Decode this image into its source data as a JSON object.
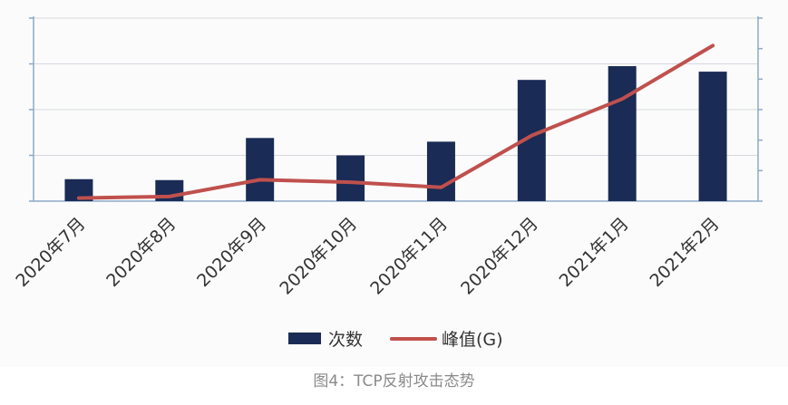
{
  "caption": "图4：TCP反射攻击态势",
  "chart_data": {
    "type": "bar+line",
    "categories": [
      "2020年7月",
      "2020年8月",
      "2020年9月",
      "2020年10月",
      "2020年11月",
      "2020年12月",
      "2021年1月",
      "2021年2月"
    ],
    "series": [
      {
        "name": "次数",
        "type": "bar",
        "values": [
          0.48,
          0.46,
          1.38,
          1.0,
          1.3,
          2.65,
          2.95,
          2.83
        ],
        "color": "#1a2b55"
      },
      {
        "name": "峰值(G)",
        "type": "line",
        "values": [
          0.1,
          0.15,
          0.7,
          0.62,
          0.45,
          2.15,
          3.35,
          5.1
        ],
        "color": "#c0504d"
      }
    ],
    "ylim_left": [
      0,
      4
    ],
    "ylim_right": [
      0,
      6
    ],
    "grid": true,
    "legend": "bottom",
    "title": "",
    "xlabel": "",
    "ylabel": ""
  }
}
